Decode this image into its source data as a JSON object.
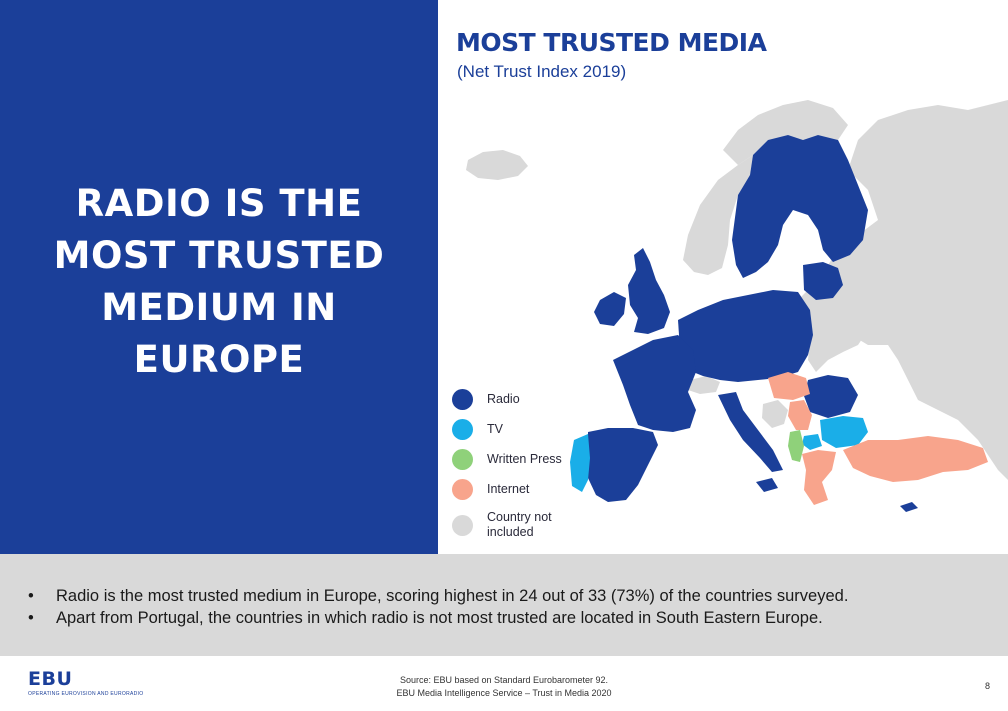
{
  "headline": {
    "lines": [
      "RADIO IS THE",
      "MOST TRUSTED",
      "MEDIUM IN",
      "EUROPE"
    ]
  },
  "map": {
    "title": "MOST TRUSTED MEDIA",
    "subtitle": "(Net Trust Index 2019)",
    "legend": [
      {
        "label": "Radio",
        "color": "#1b3f99"
      },
      {
        "label": "TV",
        "color": "#1aaee8"
      },
      {
        "label": "Written Press",
        "color": "#8fd17a"
      },
      {
        "label": "Internet",
        "color": "#f8a48c"
      },
      {
        "label": "Country not included",
        "color": "#d9d9d9"
      }
    ]
  },
  "summary": {
    "bullets": [
      "Radio is the most trusted medium in Europe, scoring highest in 24 out of 33 (73%) of the countries surveyed.",
      "Apart from Portugal, the countries in which radio is not most trusted are located in South Eastern Europe."
    ]
  },
  "footer": {
    "logo": "EBU",
    "logo_tagline": "OPERATING EUROVISION AND EURORADIO",
    "source_line1": "Source: EBU based on Standard Eurobarometer 92.",
    "source_line2": "EBU Media Intelligence Service – Trust in Media 2020",
    "page_number": "8"
  }
}
